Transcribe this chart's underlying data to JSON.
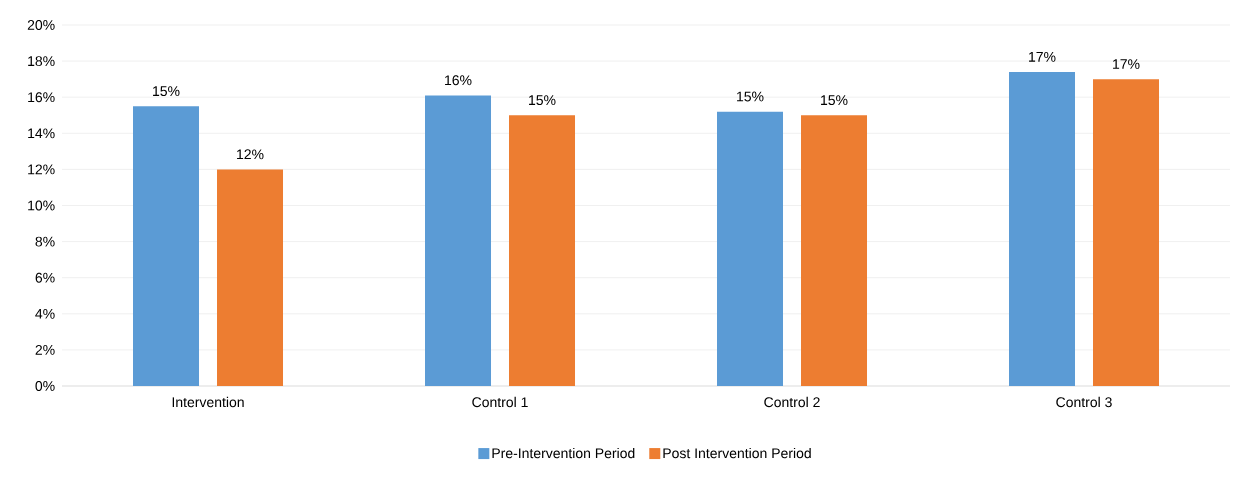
{
  "chart_data": {
    "type": "bar",
    "categories": [
      "Intervention",
      "Control 1",
      "Control 2",
      "Control 3"
    ],
    "series": [
      {
        "name": "Pre-Intervention Period",
        "color": "#5b9bd5",
        "values": [
          15.5,
          16.1,
          15.2,
          17.4
        ],
        "value_labels": [
          "15%",
          "16%",
          "15%",
          "17%"
        ]
      },
      {
        "name": "Post Intervention Period",
        "color": "#ed7d31",
        "values": [
          12.0,
          15.0,
          15.0,
          17.0
        ],
        "value_labels": [
          "12%",
          "15%",
          "15%",
          "17%"
        ]
      }
    ],
    "ylim": [
      0,
      20
    ],
    "yticks": [
      {
        "value": 0,
        "label": "0%"
      },
      {
        "value": 2,
        "label": "2%"
      },
      {
        "value": 4,
        "label": "4%"
      },
      {
        "value": 6,
        "label": "6%"
      },
      {
        "value": 8,
        "label": "8%"
      },
      {
        "value": 10,
        "label": "10%"
      },
      {
        "value": 12,
        "label": "12%"
      },
      {
        "value": 14,
        "label": "14%"
      },
      {
        "value": 16,
        "label": "16%"
      },
      {
        "value": 18,
        "label": "18%"
      },
      {
        "value": 20,
        "label": "20%"
      }
    ],
    "grid": "y",
    "legend": "bottom"
  }
}
